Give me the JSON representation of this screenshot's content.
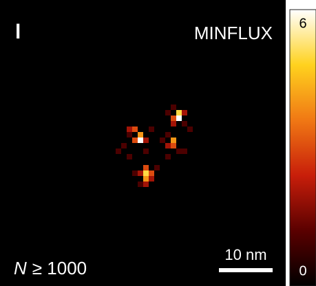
{
  "chart_data": {
    "type": "heatmap",
    "panel_label": "l",
    "title": "MINFLUX",
    "annotation": {
      "symbol": "N",
      "text": "≥ 1000"
    },
    "scale_bar": "10 nm",
    "clim": [
      0,
      6
    ],
    "colorbar_ticks": [
      0,
      6
    ],
    "colormap": [
      "#000000",
      "#5a0000",
      "#c81e0a",
      "#f07814",
      "#ffd21e",
      "#ffffff"
    ],
    "pixels": [
      [
        23,
        23,
        2
      ],
      [
        24,
        23,
        3
      ],
      [
        25,
        24,
        4
      ],
      [
        25,
        25,
        6
      ],
      [
        24,
        25,
        3
      ],
      [
        26,
        25,
        2
      ],
      [
        23,
        24,
        1
      ],
      [
        22,
        26,
        1
      ],
      [
        26,
        27,
        1
      ],
      [
        21,
        27,
        1
      ],
      [
        27,
        23,
        1
      ],
      [
        23,
        28,
        1
      ],
      [
        32,
        20,
        5
      ],
      [
        32,
        21,
        6
      ],
      [
        31,
        21,
        3
      ],
      [
        33,
        20,
        2
      ],
      [
        31,
        22,
        2
      ],
      [
        30,
        20,
        1
      ],
      [
        33,
        22,
        1
      ],
      [
        34,
        23,
        1
      ],
      [
        31,
        19,
        1
      ],
      [
        31,
        25,
        4
      ],
      [
        31,
        26,
        3
      ],
      [
        30,
        26,
        2
      ],
      [
        32,
        27,
        1
      ],
      [
        30,
        24,
        1
      ],
      [
        29,
        25,
        1
      ],
      [
        30,
        28,
        1
      ],
      [
        33,
        27,
        1
      ],
      [
        26,
        30,
        3
      ],
      [
        26,
        31,
        5
      ],
      [
        27,
        31,
        3
      ],
      [
        25,
        31,
        2
      ],
      [
        26,
        32,
        4
      ],
      [
        27,
        32,
        2
      ],
      [
        25,
        33,
        1
      ],
      [
        26,
        33,
        2
      ],
      [
        28,
        30,
        1
      ],
      [
        24,
        31,
        1
      ]
    ]
  }
}
